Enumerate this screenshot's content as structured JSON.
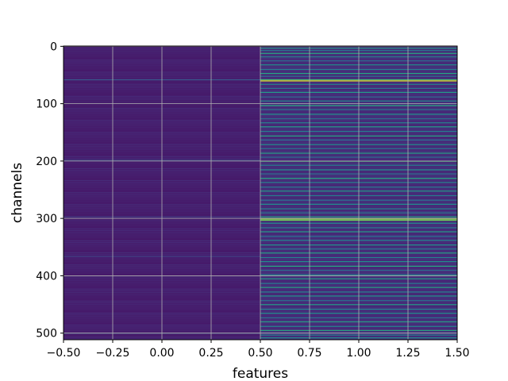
{
  "chart_data": {
    "type": "heatmap",
    "title": "",
    "xlabel": "features",
    "ylabel": "channels",
    "xlim": [
      -0.5,
      1.5
    ],
    "ylim": [
      511.5,
      -0.5
    ],
    "rows": 512,
    "cols": 2,
    "colormap": "viridis",
    "grid": true,
    "xticks": [
      -0.5,
      -0.25,
      0.0,
      0.25,
      0.5,
      0.75,
      1.0,
      1.25,
      1.5
    ],
    "xtick_labels": [
      "−0.50",
      "−0.25",
      "0.00",
      "0.25",
      "0.50",
      "0.75",
      "1.00",
      "1.25",
      "1.50"
    ],
    "yticks": [
      0,
      100,
      200,
      300,
      400,
      500
    ],
    "ytick_labels": [
      "0",
      "100",
      "200",
      "300",
      "400",
      "500"
    ],
    "columns": [
      {
        "feature": 0,
        "base_value": 0.08,
        "highlights": [
          {
            "row": 58,
            "value": 0.28
          },
          {
            "row": 198,
            "value": 0.2
          },
          {
            "row": 297,
            "value": 0.18
          },
          {
            "row": 366,
            "value": 0.2
          },
          {
            "row": 500,
            "value": 0.22
          }
        ]
      },
      {
        "feature": 1,
        "base_value": 0.12,
        "highlights": [
          {
            "row": 3,
            "value": 0.55
          },
          {
            "row": 7,
            "value": 0.4
          },
          {
            "row": 12,
            "value": 0.62
          },
          {
            "row": 18,
            "value": 0.45
          },
          {
            "row": 25,
            "value": 0.35
          },
          {
            "row": 32,
            "value": 0.5
          },
          {
            "row": 40,
            "value": 0.42
          },
          {
            "row": 47,
            "value": 0.6
          },
          {
            "row": 52,
            "value": 0.38
          },
          {
            "row": 58,
            "value": 0.7
          },
          {
            "row": 60,
            "value": 0.98
          },
          {
            "row": 66,
            "value": 0.45
          },
          {
            "row": 73,
            "value": 0.4
          },
          {
            "row": 80,
            "value": 0.55
          },
          {
            "row": 88,
            "value": 0.35
          },
          {
            "row": 95,
            "value": 0.48
          },
          {
            "row": 103,
            "value": 0.62
          },
          {
            "row": 110,
            "value": 0.4
          },
          {
            "row": 118,
            "value": 0.52
          },
          {
            "row": 126,
            "value": 0.38
          },
          {
            "row": 133,
            "value": 0.45
          },
          {
            "row": 140,
            "value": 0.55
          },
          {
            "row": 148,
            "value": 0.42
          },
          {
            "row": 156,
            "value": 0.6
          },
          {
            "row": 163,
            "value": 0.35
          },
          {
            "row": 171,
            "value": 0.5
          },
          {
            "row": 178,
            "value": 0.4
          },
          {
            "row": 186,
            "value": 0.58
          },
          {
            "row": 193,
            "value": 0.36
          },
          {
            "row": 200,
            "value": 0.68
          },
          {
            "row": 207,
            "value": 0.44
          },
          {
            "row": 215,
            "value": 0.52
          },
          {
            "row": 222,
            "value": 0.38
          },
          {
            "row": 230,
            "value": 0.62
          },
          {
            "row": 237,
            "value": 0.45
          },
          {
            "row": 245,
            "value": 0.4
          },
          {
            "row": 252,
            "value": 0.55
          },
          {
            "row": 260,
            "value": 0.42
          },
          {
            "row": 268,
            "value": 0.36
          },
          {
            "row": 275,
            "value": 0.5
          },
          {
            "row": 283,
            "value": 0.45
          },
          {
            "row": 290,
            "value": 0.4
          },
          {
            "row": 297,
            "value": 0.6
          },
          {
            "row": 300,
            "value": 0.8
          },
          {
            "row": 301,
            "value": 0.82
          },
          {
            "row": 303,
            "value": 0.78
          },
          {
            "row": 308,
            "value": 0.5
          },
          {
            "row": 316,
            "value": 0.42
          },
          {
            "row": 323,
            "value": 0.55
          },
          {
            "row": 331,
            "value": 0.38
          },
          {
            "row": 338,
            "value": 0.46
          },
          {
            "row": 346,
            "value": 0.52
          },
          {
            "row": 353,
            "value": 0.4
          },
          {
            "row": 360,
            "value": 0.58
          },
          {
            "row": 368,
            "value": 0.44
          },
          {
            "row": 375,
            "value": 0.5
          },
          {
            "row": 383,
            "value": 0.62
          },
          {
            "row": 390,
            "value": 0.38
          },
          {
            "row": 398,
            "value": 0.48
          },
          {
            "row": 405,
            "value": 0.55
          },
          {
            "row": 413,
            "value": 0.42
          },
          {
            "row": 420,
            "value": 0.6
          },
          {
            "row": 428,
            "value": 0.45
          },
          {
            "row": 435,
            "value": 0.52
          },
          {
            "row": 443,
            "value": 0.38
          },
          {
            "row": 450,
            "value": 0.56
          },
          {
            "row": 458,
            "value": 0.44
          },
          {
            "row": 465,
            "value": 0.5
          },
          {
            "row": 473,
            "value": 0.4
          },
          {
            "row": 480,
            "value": 0.58
          },
          {
            "row": 488,
            "value": 0.46
          },
          {
            "row": 495,
            "value": 0.62
          },
          {
            "row": 503,
            "value": 0.42
          },
          {
            "row": 508,
            "value": 0.5
          }
        ]
      }
    ]
  }
}
